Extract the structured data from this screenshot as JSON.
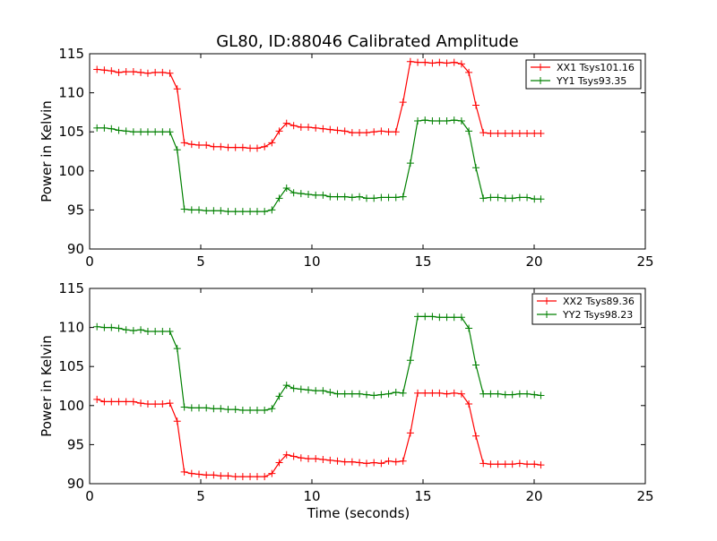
{
  "figure": {
    "title": "GL80, ID:88046 Calibrated Amplitude"
  },
  "chart_data": [
    {
      "type": "line",
      "title": "GL80, ID:88046 Calibrated Amplitude",
      "xlabel": "",
      "ylabel": "Power in Kelvin",
      "xlim": [
        0,
        25
      ],
      "ylim": [
        90,
        115
      ],
      "xticks": [
        "0",
        "5",
        "10",
        "15",
        "20",
        "25"
      ],
      "yticks": [
        "90",
        "95",
        "100",
        "105",
        "110",
        "115"
      ],
      "grid": false,
      "legend_position": "top-right",
      "series": [
        {
          "name": "XX1 Tsys101.16",
          "color": "#ff0000",
          "x": [
            0.33,
            0.66,
            0.98,
            1.31,
            1.64,
            1.97,
            2.3,
            2.62,
            2.95,
            3.28,
            3.61,
            3.94,
            4.26,
            4.59,
            4.92,
            5.25,
            5.58,
            5.9,
            6.23,
            6.56,
            6.89,
            7.22,
            7.54,
            7.87,
            8.2,
            8.53,
            8.86,
            9.18,
            9.51,
            9.84,
            10.17,
            10.5,
            10.82,
            11.15,
            11.48,
            11.81,
            12.14,
            12.46,
            12.79,
            13.12,
            13.45,
            13.78,
            14.1,
            14.43,
            14.76,
            15.09,
            15.42,
            15.74,
            16.07,
            16.4,
            16.73,
            17.06,
            17.38,
            17.71,
            18.04,
            18.37,
            18.7,
            19.02,
            19.35,
            19.68,
            20.01,
            20.3
          ],
          "y": [
            113.0,
            112.9,
            112.8,
            112.6,
            112.7,
            112.7,
            112.6,
            112.5,
            112.6,
            112.6,
            112.5,
            110.5,
            103.6,
            103.4,
            103.3,
            103.3,
            103.1,
            103.1,
            103.0,
            103.0,
            103.0,
            102.9,
            102.9,
            103.1,
            103.6,
            105.1,
            106.1,
            105.8,
            105.6,
            105.6,
            105.5,
            105.4,
            105.3,
            105.2,
            105.1,
            104.9,
            104.9,
            104.9,
            105.0,
            105.1,
            105.0,
            105.0,
            108.8,
            114.0,
            113.9,
            113.9,
            113.8,
            113.9,
            113.8,
            113.9,
            113.7,
            112.6,
            108.4,
            104.9,
            104.8,
            104.8,
            104.8,
            104.8,
            104.8,
            104.8,
            104.8,
            104.8
          ]
        },
        {
          "name": "YY1 Tsys93.35",
          "color": "#008000",
          "x": [
            0.33,
            0.66,
            0.98,
            1.31,
            1.64,
            1.97,
            2.3,
            2.62,
            2.95,
            3.28,
            3.61,
            3.94,
            4.26,
            4.59,
            4.92,
            5.25,
            5.58,
            5.9,
            6.23,
            6.56,
            6.89,
            7.22,
            7.54,
            7.87,
            8.2,
            8.53,
            8.86,
            9.18,
            9.51,
            9.84,
            10.17,
            10.5,
            10.82,
            11.15,
            11.48,
            11.81,
            12.14,
            12.46,
            12.79,
            13.12,
            13.45,
            13.78,
            14.1,
            14.43,
            14.76,
            15.09,
            15.42,
            15.74,
            16.07,
            16.4,
            16.73,
            17.06,
            17.38,
            17.71,
            18.04,
            18.37,
            18.7,
            19.02,
            19.35,
            19.68,
            20.01,
            20.3
          ],
          "y": [
            105.5,
            105.5,
            105.4,
            105.2,
            105.1,
            105.0,
            105.0,
            105.0,
            105.0,
            105.0,
            105.0,
            102.7,
            95.1,
            95.0,
            95.0,
            94.9,
            94.9,
            94.9,
            94.8,
            94.8,
            94.8,
            94.8,
            94.8,
            94.8,
            95.0,
            96.5,
            97.8,
            97.2,
            97.1,
            97.0,
            96.9,
            96.9,
            96.7,
            96.7,
            96.7,
            96.6,
            96.7,
            96.5,
            96.5,
            96.6,
            96.6,
            96.6,
            96.7,
            101.0,
            106.4,
            106.5,
            106.4,
            106.4,
            106.4,
            106.5,
            106.4,
            105.1,
            100.4,
            96.5,
            96.6,
            96.6,
            96.5,
            96.5,
            96.6,
            96.6,
            96.4,
            96.4
          ]
        }
      ]
    },
    {
      "type": "line",
      "title": "",
      "xlabel": "Time (seconds)",
      "ylabel": "Power in Kelvin",
      "xlim": [
        0,
        25
      ],
      "ylim": [
        90,
        115
      ],
      "xticks": [
        "0",
        "5",
        "10",
        "15",
        "20",
        "25"
      ],
      "yticks": [
        "90",
        "95",
        "100",
        "105",
        "110",
        "115"
      ],
      "grid": false,
      "legend_position": "top-right",
      "series": [
        {
          "name": "XX2 Tsys89.36",
          "color": "#ff0000",
          "x": [
            0.33,
            0.66,
            0.98,
            1.31,
            1.64,
            1.97,
            2.3,
            2.62,
            2.95,
            3.28,
            3.61,
            3.94,
            4.26,
            4.59,
            4.92,
            5.25,
            5.58,
            5.9,
            6.23,
            6.56,
            6.89,
            7.22,
            7.54,
            7.87,
            8.2,
            8.53,
            8.86,
            9.18,
            9.51,
            9.84,
            10.17,
            10.5,
            10.82,
            11.15,
            11.48,
            11.81,
            12.14,
            12.46,
            12.79,
            13.12,
            13.45,
            13.78,
            14.1,
            14.43,
            14.76,
            15.09,
            15.42,
            15.74,
            16.07,
            16.4,
            16.73,
            17.06,
            17.38,
            17.71,
            18.04,
            18.37,
            18.7,
            19.02,
            19.35,
            19.68,
            20.01,
            20.3
          ],
          "y": [
            100.8,
            100.5,
            100.5,
            100.5,
            100.5,
            100.5,
            100.3,
            100.2,
            100.2,
            100.2,
            100.3,
            98.0,
            91.5,
            91.3,
            91.2,
            91.1,
            91.1,
            91.0,
            91.0,
            90.9,
            90.9,
            90.9,
            90.9,
            90.9,
            91.3,
            92.7,
            93.7,
            93.5,
            93.3,
            93.2,
            93.2,
            93.1,
            93.0,
            92.9,
            92.8,
            92.8,
            92.7,
            92.6,
            92.7,
            92.6,
            92.9,
            92.8,
            92.9,
            96.5,
            101.6,
            101.6,
            101.6,
            101.6,
            101.5,
            101.6,
            101.5,
            100.2,
            96.1,
            92.6,
            92.5,
            92.5,
            92.5,
            92.5,
            92.6,
            92.5,
            92.5,
            92.4
          ]
        },
        {
          "name": "YY2 Tsys98.23",
          "color": "#008000",
          "x": [
            0.33,
            0.66,
            0.98,
            1.31,
            1.64,
            1.97,
            2.3,
            2.62,
            2.95,
            3.28,
            3.61,
            3.94,
            4.26,
            4.59,
            4.92,
            5.25,
            5.58,
            5.9,
            6.23,
            6.56,
            6.89,
            7.22,
            7.54,
            7.87,
            8.2,
            8.53,
            8.86,
            9.18,
            9.51,
            9.84,
            10.17,
            10.5,
            10.82,
            11.15,
            11.48,
            11.81,
            12.14,
            12.46,
            12.79,
            13.12,
            13.45,
            13.78,
            14.1,
            14.43,
            14.76,
            15.09,
            15.42,
            15.74,
            16.07,
            16.4,
            16.73,
            17.06,
            17.38,
            17.71,
            18.04,
            18.37,
            18.7,
            19.02,
            19.35,
            19.68,
            20.01,
            20.3
          ],
          "y": [
            110.1,
            110.0,
            110.0,
            109.9,
            109.7,
            109.6,
            109.7,
            109.5,
            109.5,
            109.5,
            109.5,
            107.3,
            99.8,
            99.7,
            99.7,
            99.7,
            99.6,
            99.6,
            99.5,
            99.5,
            99.4,
            99.4,
            99.4,
            99.4,
            99.6,
            101.2,
            102.6,
            102.2,
            102.1,
            102.0,
            101.9,
            101.9,
            101.7,
            101.5,
            101.5,
            101.5,
            101.5,
            101.4,
            101.3,
            101.4,
            101.5,
            101.7,
            101.6,
            105.8,
            111.4,
            111.4,
            111.4,
            111.3,
            111.3,
            111.3,
            111.3,
            109.9,
            105.2,
            101.5,
            101.5,
            101.5,
            101.4,
            101.4,
            101.5,
            101.5,
            101.4,
            101.3
          ]
        }
      ]
    }
  ]
}
